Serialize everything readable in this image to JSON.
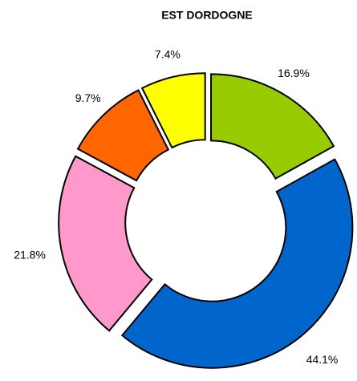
{
  "chart_data": {
    "type": "donut",
    "title": "EST DORDOGNE",
    "categories": [
      null,
      null,
      null,
      null,
      null
    ],
    "values": [
      16.9,
      44.1,
      21.8,
      9.7,
      7.4
    ],
    "value_labels": [
      "16.9%",
      "44.1%",
      "21.8%",
      "9.7%",
      "7.4%"
    ],
    "colors": [
      "#99cc00",
      "#0066cc",
      "#ff99cc",
      "#ff6600",
      "#ffff00"
    ]
  }
}
